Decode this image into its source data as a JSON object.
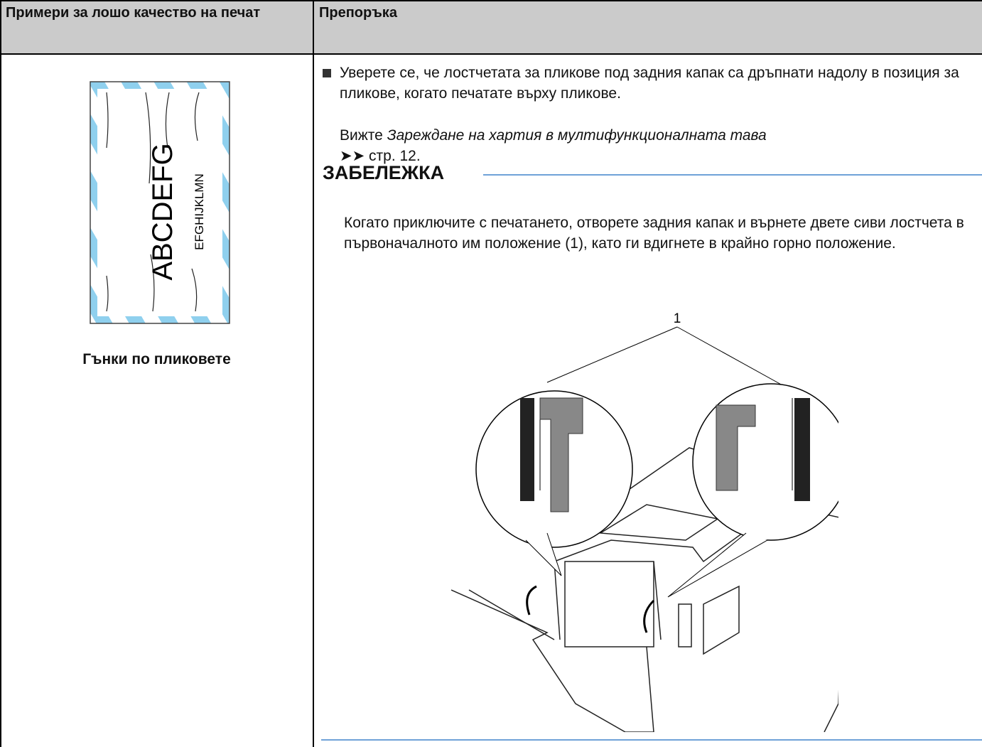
{
  "header": {
    "column_1": "Примери за лошо качество на печат",
    "column_2": "Препоръка"
  },
  "example": {
    "sample_text_large": "ABCDEFG",
    "sample_text_small": "EFGHIJKLMN",
    "caption": "Гънки по пликовете"
  },
  "recommendation": {
    "bullet": "Уверете се, че лостчетата за пликове под задния капак са дръпнати надолу в позиция за пликове, когато печатате върху пликове.",
    "reference": {
      "prefix": "Вижте",
      "link": "Зареждане на хартия в мултифункционалната тава",
      "page_ref": "➤➤ стр. 12."
    },
    "note": {
      "heading": "ЗАБЕЛЕЖКА",
      "text": "Когато приключите с печатането, отворете задния капак и върнете двете сиви лостчета в първоначалното им положение (1), като ги вдигнете в крайно горно положение.",
      "callout": "1"
    }
  }
}
